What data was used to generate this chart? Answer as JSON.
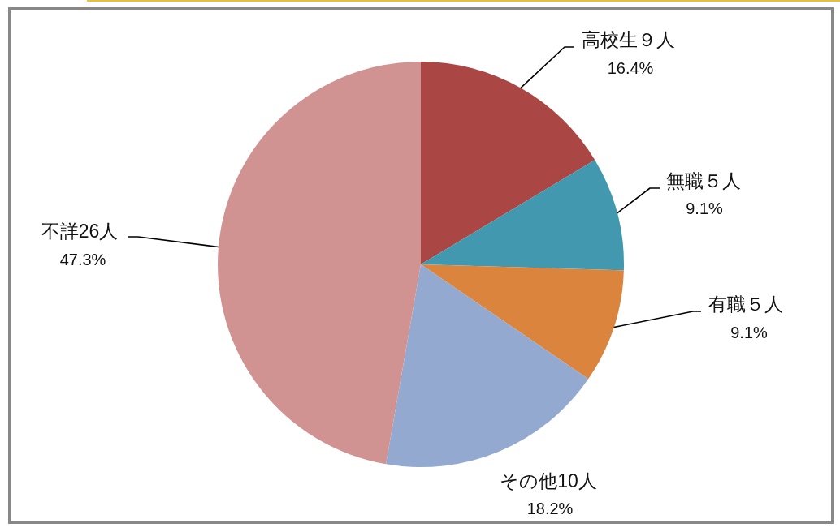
{
  "chart_data": {
    "type": "pie",
    "categories": [
      "高校生９人",
      "無職５人",
      "有職５人",
      "その他10人",
      "不詳26人"
    ],
    "values": [
      16.4,
      9.1,
      9.1,
      18.2,
      47.3
    ],
    "colors": [
      "#aa4643",
      "#4198af",
      "#db843d",
      "#93a9cf",
      "#d19392"
    ],
    "value_labels": [
      "16.4%",
      "9.1%",
      "9.1%",
      "18.2%",
      "47.3%"
    ]
  }
}
